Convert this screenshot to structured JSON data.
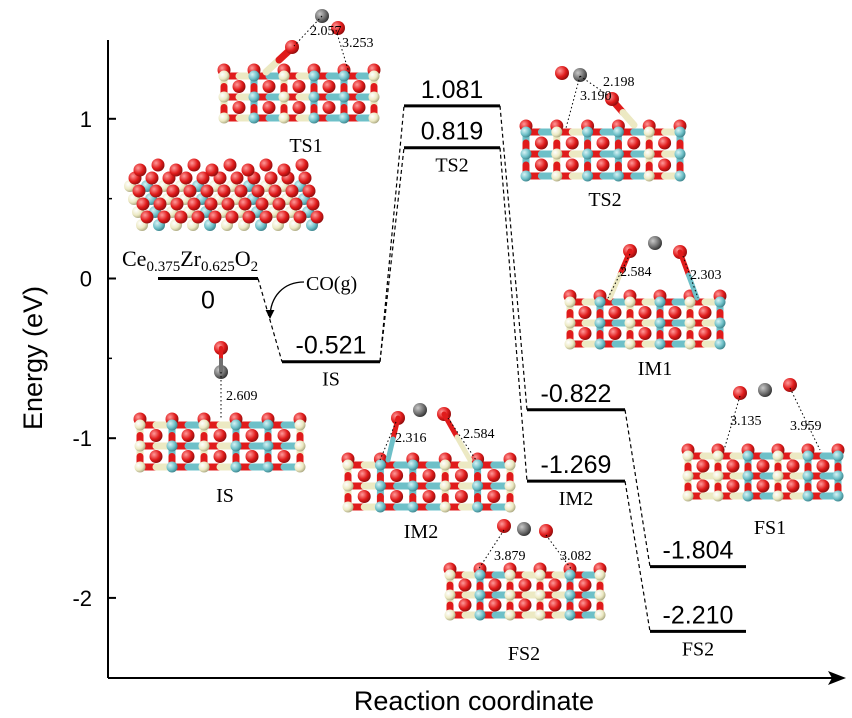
{
  "chart_data": {
    "type": "energy-profile",
    "xlabel": "Reaction coordinate",
    "ylabel": "Energy (eV)",
    "ylim": [
      -2.5,
      1.55
    ],
    "yticks": [
      {
        "value": 1,
        "label": "1"
      },
      {
        "value": 0,
        "label": "0"
      },
      {
        "value": -1,
        "label": "-1"
      },
      {
        "value": -2,
        "label": "-2"
      }
    ],
    "levels": [
      {
        "id": "start",
        "energy": 0,
        "value_label": "0",
        "state_label": "",
        "col": 0
      },
      {
        "id": "is",
        "energy": -0.521,
        "value_label": "-0.521",
        "state_label": "IS",
        "col": 1
      },
      {
        "id": "ts1",
        "energy": 1.081,
        "value_label": "1.081",
        "state_label": "",
        "col": 2
      },
      {
        "id": "ts2",
        "energy": 0.819,
        "value_label": "0.819",
        "state_label": "TS2",
        "col": 2
      },
      {
        "id": "im1",
        "energy": -0.822,
        "value_label": "-0.822",
        "state_label": "",
        "col": 3
      },
      {
        "id": "im2",
        "energy": -1.269,
        "value_label": "-1.269",
        "state_label": "IM2",
        "col": 3
      },
      {
        "id": "fs1",
        "energy": -1.804,
        "value_label": "-1.804",
        "state_label": "",
        "col": 4
      },
      {
        "id": "fs2",
        "energy": -2.21,
        "value_label": "-2.210",
        "state_label": "FS2",
        "col": 4
      }
    ],
    "connections": [
      [
        "start",
        "is"
      ],
      [
        "is",
        "ts1"
      ],
      [
        "is",
        "ts2"
      ],
      [
        "ts1",
        "im1"
      ],
      [
        "ts2",
        "im2"
      ],
      [
        "im1",
        "fs1"
      ],
      [
        "im2",
        "fs2"
      ]
    ],
    "annotations": {
      "surface": {
        "base1": "Ce",
        "sub1": "0.375",
        "base2": "Zr",
        "sub2": "0.625",
        "base3": "O",
        "sub3": "2"
      },
      "adsorbate": "CO(g)"
    },
    "structures": [
      {
        "id": "ts1",
        "label": "TS1",
        "distances": [
          "2.057",
          "3.253"
        ]
      },
      {
        "id": "ts2",
        "label": "TS2",
        "distances": [
          "2.198",
          "3.190"
        ]
      },
      {
        "id": "im1",
        "label": "IM1",
        "distances": [
          "2.584",
          "2.303"
        ]
      },
      {
        "id": "is",
        "label": "IS",
        "distances": [
          "2.609"
        ]
      },
      {
        "id": "im2",
        "label": "IM2",
        "distances": [
          "2.316",
          "2.584"
        ]
      },
      {
        "id": "fs1",
        "label": "FS1",
        "distances": [
          "3.135",
          "3.959"
        ]
      },
      {
        "id": "fs2",
        "label": "FS2",
        "distances": [
          "3.879",
          "3.082"
        ]
      }
    ],
    "colors": {
      "oxygen": "#e01b1b",
      "cerium": "#ece9c3",
      "zirconium": "#6ec0c8",
      "carbon": "#707070",
      "axis": "#000000"
    }
  }
}
